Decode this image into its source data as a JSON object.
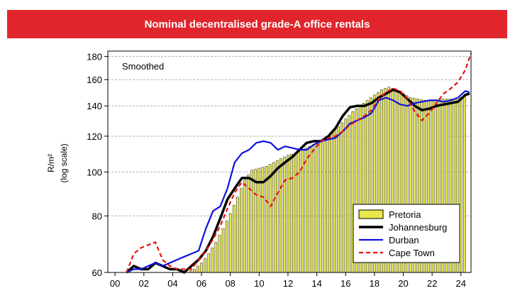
{
  "chart_data": {
    "type": "bar",
    "title": "Nominal decentralised grade-A office rentals",
    "annotation": "Smoothed",
    "ylabel": "R/m²",
    "ylabel_note": "(log scale)",
    "xlabel": "",
    "y_scale": "log",
    "ylim": [
      60,
      185
    ],
    "yticks": [
      60,
      80,
      100,
      120,
      140,
      160,
      180
    ],
    "xlim": [
      -0.5,
      24.7
    ],
    "xticks": [
      0,
      2,
      4,
      6,
      8,
      10,
      12,
      14,
      16,
      18,
      20,
      22,
      24
    ],
    "xtick_labels": [
      "00",
      "02",
      "04",
      "06",
      "08",
      "10",
      "12",
      "14",
      "16",
      "18",
      "20",
      "22",
      "24"
    ],
    "grid": "horizontal dashed",
    "legend_position": "bottom-right",
    "bar_series": {
      "name": "Pretoria",
      "color": "#e8e84a",
      "points": [
        [
          5.0,
          60
        ],
        [
          5.5,
          61
        ],
        [
          6.0,
          63
        ],
        [
          6.5,
          66
        ],
        [
          7.0,
          70
        ],
        [
          7.5,
          75
        ],
        [
          8.0,
          81
        ],
        [
          8.5,
          88
        ],
        [
          9.0,
          96
        ],
        [
          9.5,
          101
        ],
        [
          10.0,
          102
        ],
        [
          10.5,
          103
        ],
        [
          11.0,
          105
        ],
        [
          11.5,
          107
        ],
        [
          12.0,
          109
        ],
        [
          12.5,
          110
        ],
        [
          13.0,
          112
        ],
        [
          13.5,
          114
        ],
        [
          14.0,
          116
        ],
        [
          14.5,
          118
        ],
        [
          15.0,
          122
        ],
        [
          15.5,
          126
        ],
        [
          16.0,
          131
        ],
        [
          16.5,
          136
        ],
        [
          17.0,
          140
        ],
        [
          17.5,
          144
        ],
        [
          18.0,
          148
        ],
        [
          18.5,
          152
        ],
        [
          19.0,
          154
        ],
        [
          19.5,
          152
        ],
        [
          20.0,
          149
        ],
        [
          20.5,
          146
        ],
        [
          21.0,
          145
        ],
        [
          21.5,
          144
        ],
        [
          22.0,
          144
        ],
        [
          22.5,
          145
        ],
        [
          23.0,
          145
        ],
        [
          23.5,
          145
        ],
        [
          24.0,
          146
        ],
        [
          24.4,
          148
        ]
      ]
    },
    "series": [
      {
        "name": "Johannesburg",
        "color": "#000000",
        "style": "solid-thick",
        "points": [
          [
            0.8,
            60
          ],
          [
            1.3,
            62
          ],
          [
            1.8,
            61
          ],
          [
            2.3,
            61
          ],
          [
            2.8,
            63
          ],
          [
            3.3,
            62
          ],
          [
            3.8,
            61
          ],
          [
            4.3,
            61
          ],
          [
            4.8,
            60
          ],
          [
            5.3,
            62
          ],
          [
            5.8,
            64
          ],
          [
            6.3,
            67
          ],
          [
            6.8,
            72
          ],
          [
            7.3,
            79
          ],
          [
            7.8,
            87
          ],
          [
            8.3,
            92
          ],
          [
            8.8,
            97
          ],
          [
            9.3,
            97
          ],
          [
            9.8,
            95
          ],
          [
            10.3,
            95
          ],
          [
            10.8,
            98
          ],
          [
            11.3,
            102
          ],
          [
            11.8,
            105
          ],
          [
            12.3,
            108
          ],
          [
            12.8,
            112
          ],
          [
            13.3,
            116
          ],
          [
            13.8,
            117
          ],
          [
            14.3,
            117
          ],
          [
            14.8,
            120
          ],
          [
            15.3,
            125
          ],
          [
            15.8,
            133
          ],
          [
            16.3,
            139
          ],
          [
            16.8,
            140
          ],
          [
            17.3,
            140
          ],
          [
            17.8,
            142
          ],
          [
            18.3,
            146
          ],
          [
            18.8,
            149
          ],
          [
            19.3,
            152
          ],
          [
            19.8,
            150
          ],
          [
            20.3,
            145
          ],
          [
            20.8,
            140
          ],
          [
            21.3,
            137
          ],
          [
            21.8,
            138
          ],
          [
            22.3,
            140
          ],
          [
            22.8,
            141
          ],
          [
            23.3,
            142
          ],
          [
            23.8,
            143
          ],
          [
            24.3,
            148
          ],
          [
            24.6,
            149
          ]
        ]
      },
      {
        "name": "Durban",
        "color": "#1010e0",
        "style": "solid",
        "points": [
          [
            0.8,
            60
          ],
          [
            1.3,
            61
          ],
          [
            1.8,
            61
          ],
          [
            2.3,
            62
          ],
          [
            2.8,
            63
          ],
          [
            3.3,
            62
          ],
          [
            3.8,
            63
          ],
          [
            4.3,
            64
          ],
          [
            4.8,
            65
          ],
          [
            5.3,
            66
          ],
          [
            5.8,
            67
          ],
          [
            6.3,
            75
          ],
          [
            6.8,
            82
          ],
          [
            7.3,
            84
          ],
          [
            7.8,
            92
          ],
          [
            8.3,
            105
          ],
          [
            8.8,
            110
          ],
          [
            9.3,
            112
          ],
          [
            9.8,
            116
          ],
          [
            10.3,
            117
          ],
          [
            10.8,
            116
          ],
          [
            11.3,
            112
          ],
          [
            11.8,
            114
          ],
          [
            12.3,
            113
          ],
          [
            12.8,
            112
          ],
          [
            13.3,
            112
          ],
          [
            13.8,
            115
          ],
          [
            14.3,
            117
          ],
          [
            14.8,
            118
          ],
          [
            15.3,
            119
          ],
          [
            15.8,
            123
          ],
          [
            16.3,
            128
          ],
          [
            16.8,
            130
          ],
          [
            17.3,
            132
          ],
          [
            17.8,
            135
          ],
          [
            18.3,
            144
          ],
          [
            18.8,
            146
          ],
          [
            19.3,
            144
          ],
          [
            19.8,
            141
          ],
          [
            20.3,
            140
          ],
          [
            20.8,
            142
          ],
          [
            21.3,
            143
          ],
          [
            21.8,
            144
          ],
          [
            22.3,
            144
          ],
          [
            22.8,
            143
          ],
          [
            23.3,
            144
          ],
          [
            23.8,
            146
          ],
          [
            24.3,
            151
          ],
          [
            24.6,
            150
          ]
        ]
      },
      {
        "name": "Cape Town",
        "color": "#e81010",
        "style": "dashed",
        "points": [
          [
            0.8,
            60
          ],
          [
            1.3,
            66
          ],
          [
            1.8,
            68
          ],
          [
            2.3,
            69
          ],
          [
            2.8,
            70
          ],
          [
            3.3,
            64
          ],
          [
            3.8,
            62
          ],
          [
            4.3,
            61
          ],
          [
            4.8,
            61
          ],
          [
            5.3,
            61
          ],
          [
            5.8,
            64
          ],
          [
            6.3,
            67
          ],
          [
            6.8,
            71
          ],
          [
            7.3,
            76
          ],
          [
            7.8,
            83
          ],
          [
            8.3,
            90
          ],
          [
            8.8,
            95
          ],
          [
            9.3,
            92
          ],
          [
            9.8,
            89
          ],
          [
            10.3,
            88
          ],
          [
            10.8,
            84
          ],
          [
            11.3,
            90
          ],
          [
            11.8,
            96
          ],
          [
            12.3,
            97
          ],
          [
            12.8,
            100
          ],
          [
            13.3,
            107
          ],
          [
            13.8,
            112
          ],
          [
            14.3,
            117
          ],
          [
            14.8,
            119
          ],
          [
            15.3,
            120
          ],
          [
            15.8,
            123
          ],
          [
            16.3,
            127
          ],
          [
            16.8,
            130
          ],
          [
            17.3,
            133
          ],
          [
            17.8,
            137
          ],
          [
            18.3,
            145
          ],
          [
            18.8,
            150
          ],
          [
            19.3,
            153
          ],
          [
            19.8,
            151
          ],
          [
            20.3,
            145
          ],
          [
            20.8,
            136
          ],
          [
            21.3,
            130
          ],
          [
            21.8,
            135
          ],
          [
            22.3,
            142
          ],
          [
            22.8,
            149
          ],
          [
            23.3,
            153
          ],
          [
            23.8,
            158
          ],
          [
            24.3,
            168
          ],
          [
            24.7,
            183
          ]
        ]
      }
    ]
  }
}
